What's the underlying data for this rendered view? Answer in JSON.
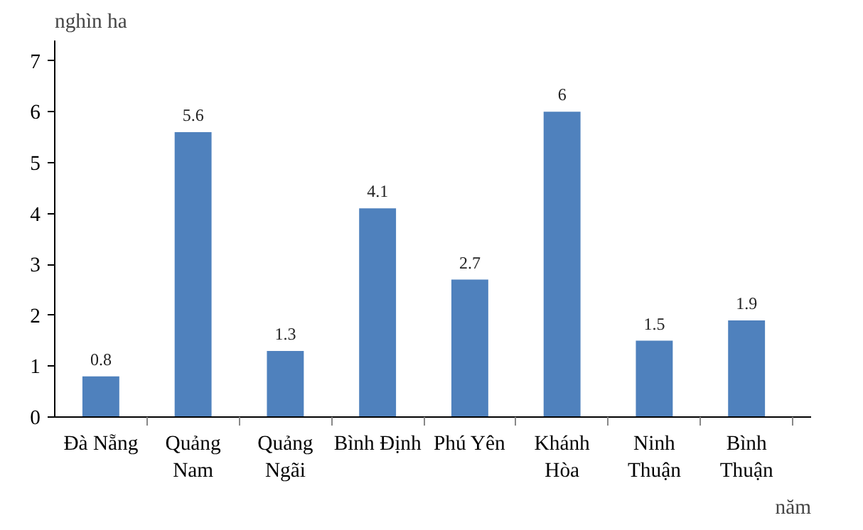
{
  "chart_data": {
    "type": "bar",
    "xlabel": "năm",
    "ylabel": "nghìn ha",
    "categories": [
      "Đà Nẵng",
      "Quảng\nNam",
      "Quảng\nNgãi",
      "Bình Định",
      "Phú Yên",
      "Khánh\nHòa",
      "Ninh\nThuận",
      "Bình\nThuận"
    ],
    "values": [
      0.8,
      5.6,
      1.3,
      4.1,
      2.7,
      6,
      1.5,
      1.9
    ],
    "color": "#4f81bd",
    "ylim": [
      0,
      7.4
    ],
    "yticks": [
      0,
      1,
      2,
      3,
      4,
      5,
      6,
      7
    ],
    "data_labels": true
  }
}
